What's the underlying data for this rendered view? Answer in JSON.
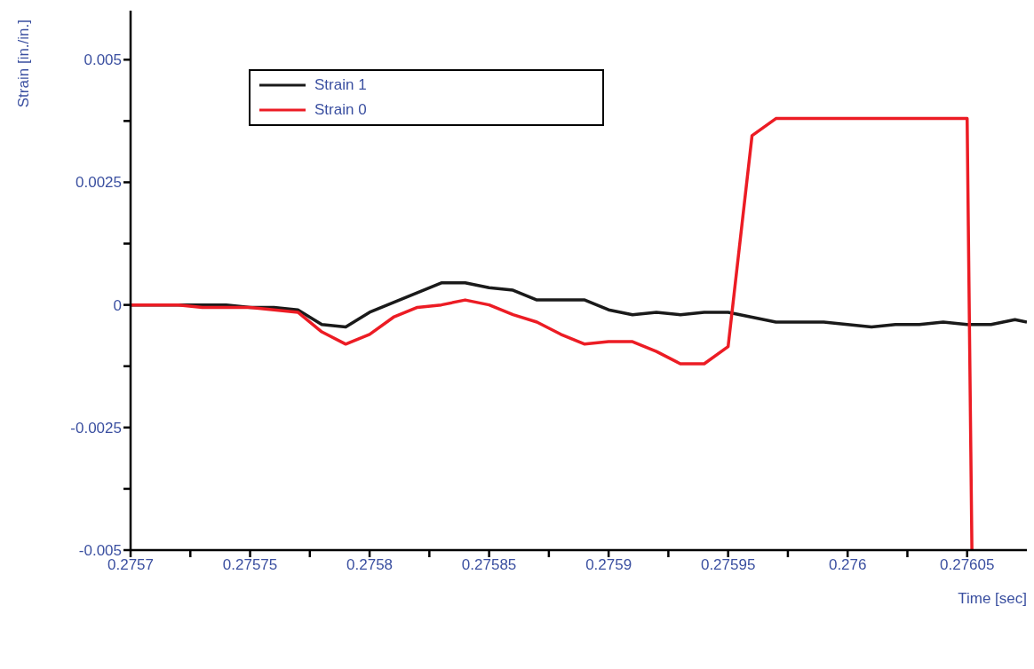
{
  "chart_data": {
    "type": "line",
    "xlabel": "Time [sec]",
    "ylabel": "Strain [in./in.]",
    "legend": "top left",
    "grid": false,
    "marker": "none",
    "line_style": "solid",
    "xlim": [
      0.2757,
      0.276075
    ],
    "ylim": [
      -0.005,
      0.006
    ],
    "xticks": [
      0.2757,
      {
        "value": 0.275725,
        "label": null
      },
      0.27575,
      {
        "value": 0.275775,
        "label": null
      },
      0.2758,
      {
        "value": 0.275825,
        "label": null
      },
      0.27585,
      {
        "value": 0.275875,
        "label": null
      },
      0.2759,
      {
        "value": 0.275925,
        "label": null
      },
      0.27595,
      {
        "value": 0.275975,
        "label": null
      },
      0.276,
      {
        "value": 0.276025,
        "label": null
      },
      0.27605
    ],
    "yticks": [
      -0.005,
      {
        "value": -0.00375,
        "label": null
      },
      -0.0025,
      {
        "value": -0.00125,
        "label": null
      },
      0,
      {
        "value": 0.00125,
        "label": null
      },
      0.0025,
      {
        "value": 0.00375,
        "label": null
      },
      0.005
    ],
    "series": [
      {
        "name": "Strain 1",
        "color": "#1a1a1a",
        "x": [
          0.2757,
          0.27571,
          0.27572,
          0.27573,
          0.27574,
          0.27575,
          0.27576,
          0.27577,
          0.27578,
          0.27579,
          0.2758,
          0.27581,
          0.27582,
          0.27583,
          0.27584,
          0.27585,
          0.27586,
          0.27587,
          0.27588,
          0.27589,
          0.2759,
          0.27591,
          0.27592,
          0.27593,
          0.27594,
          0.27595,
          0.27596,
          0.27597,
          0.27598,
          0.27599,
          0.276,
          0.27601,
          0.27602,
          0.27603,
          0.27604,
          0.27605,
          0.27606,
          0.27607,
          0.276075
        ],
        "values": [
          0,
          0,
          0,
          0,
          0,
          -5e-05,
          -5e-05,
          -0.0001,
          -0.0004,
          -0.00045,
          -0.00015,
          5e-05,
          0.00025,
          0.00045,
          0.00045,
          0.00035,
          0.0003,
          0.0001,
          0.0001,
          0.0001,
          -0.0001,
          -0.0002,
          -0.00015,
          -0.0002,
          -0.00015,
          -0.00015,
          -0.00025,
          -0.00035,
          -0.00035,
          -0.00035,
          -0.0004,
          -0.00045,
          -0.0004,
          -0.0004,
          -0.00035,
          -0.0004,
          -0.0004,
          -0.0003,
          -0.00035
        ]
      },
      {
        "name": "Strain 0",
        "color": "#ec1c24",
        "x": [
          0.2757,
          0.27571,
          0.27572,
          0.27573,
          0.27574,
          0.27575,
          0.27576,
          0.27577,
          0.27578,
          0.27579,
          0.2758,
          0.27581,
          0.27582,
          0.27583,
          0.27584,
          0.27585,
          0.27586,
          0.27587,
          0.27588,
          0.27589,
          0.2759,
          0.27591,
          0.27592,
          0.27593,
          0.27594,
          0.27595,
          0.27596,
          0.27597,
          0.27598,
          0.27599,
          0.276,
          0.27601,
          0.27602,
          0.27603,
          0.27604,
          0.27605,
          0.276052
        ],
        "values": [
          0,
          0,
          0,
          -5e-05,
          -5e-05,
          -5e-05,
          -0.0001,
          -0.00015,
          -0.00055,
          -0.0008,
          -0.0006,
          -0.00025,
          -5e-05,
          0,
          0.0001,
          0,
          -0.0002,
          -0.00035,
          -0.0006,
          -0.0008,
          -0.00075,
          -0.00075,
          -0.00095,
          -0.0012,
          -0.0012,
          -0.00085,
          0.00345,
          0.0038,
          0.0038,
          0.0038,
          0.0038,
          0.0038,
          0.0038,
          0.0038,
          0.0038,
          0.0038,
          -0.005
        ]
      }
    ]
  }
}
